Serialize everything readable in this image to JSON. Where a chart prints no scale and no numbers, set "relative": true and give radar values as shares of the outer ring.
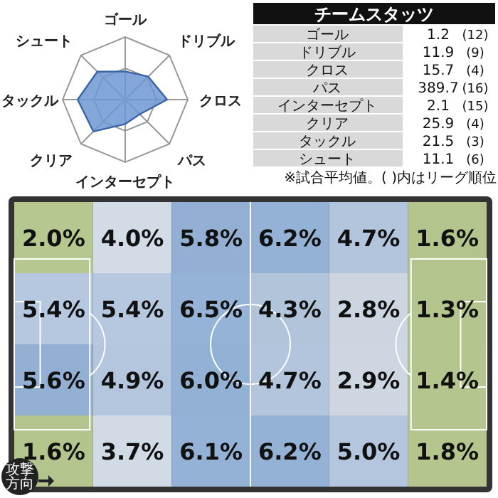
{
  "chart_data": [
    {
      "type": "radar",
      "relative": true,
      "grid": true,
      "categories": [
        "ゴール",
        "ドリブル",
        "クロス",
        "パス",
        "インターセプト",
        "クリア",
        "タックル",
        "シュート"
      ],
      "series": [
        {
          "color": "#6f98d2",
          "values": [
            0.45,
            0.52,
            0.67,
            0.33,
            0.39,
            0.72,
            0.76,
            0.63
          ]
        }
      ]
    },
    {
      "type": "other",
      "title": "チームスタッツ",
      "categories": [
        "ゴール",
        "ドリブル",
        "クロス",
        "パス",
        "インターセプト",
        "クリア",
        "タックル",
        "シュート"
      ],
      "data_labels": true,
      "series": [
        {
          "values": [
            1.2,
            11.9,
            15.7,
            389.7,
            2.1,
            25.9,
            21.5,
            11.1
          ]
        },
        {
          "values": [
            12,
            9,
            4,
            16,
            15,
            4,
            3,
            6
          ],
          "value_labels": [
            "(12)",
            "(9)",
            "(4)",
            "(16)",
            "(15)",
            "(4)",
            "(3)",
            "(6)"
          ]
        }
      ],
      "annotations": [
        "※試合平均値。( )内はリーグ順位"
      ]
    },
    {
      "type": "heatmap",
      "categories": [
        null,
        null,
        null,
        null,
        null,
        null
      ],
      "y_categories": [
        null,
        null,
        null,
        null
      ],
      "cells": [
        [
          2.0,
          4.0,
          5.8,
          6.2,
          4.7,
          1.6
        ],
        [
          5.4,
          5.4,
          6.5,
          4.3,
          2.8,
          1.3
        ],
        [
          5.6,
          4.9,
          6.0,
          4.7,
          2.9,
          1.4
        ],
        [
          1.6,
          3.7,
          6.1,
          6.2,
          5.0,
          1.8
        ]
      ],
      "cell_labels": [
        [
          "2.0%",
          "4.0%",
          "5.8%",
          "6.2%",
          "4.7%",
          "1.6%"
        ],
        [
          "5.4%",
          "5.4%",
          "6.5%",
          "4.3%",
          "2.8%",
          "1.3%"
        ],
        [
          "5.6%",
          "4.9%",
          "6.0%",
          "4.7%",
          "2.9%",
          "1.4%"
        ],
        [
          "1.6%",
          "3.7%",
          "6.1%",
          "6.2%",
          "5.0%",
          "1.8%"
        ]
      ],
      "colors": [
        [
          "#c5d89a",
          "#dce6f1",
          "#95b3d7",
          "#95b3d7",
          "#b8cce4",
          "#c5d89a"
        ],
        [
          "#b8cce4",
          "#b8cce4",
          "#95b3d7",
          "#b8cce4",
          "#dce6f1",
          "#c5d89a"
        ],
        [
          "#95b3d7",
          "#b8cce4",
          "#95b3d7",
          "#b8cce4",
          "#dce6f1",
          "#c5d89a"
        ],
        [
          "#c5d89a",
          "#dce6f1",
          "#95b3d7",
          "#95b3d7",
          "#b8cce4",
          "#c5d89a"
        ]
      ],
      "annotations": [
        "攻撃方向"
      ]
    }
  ]
}
